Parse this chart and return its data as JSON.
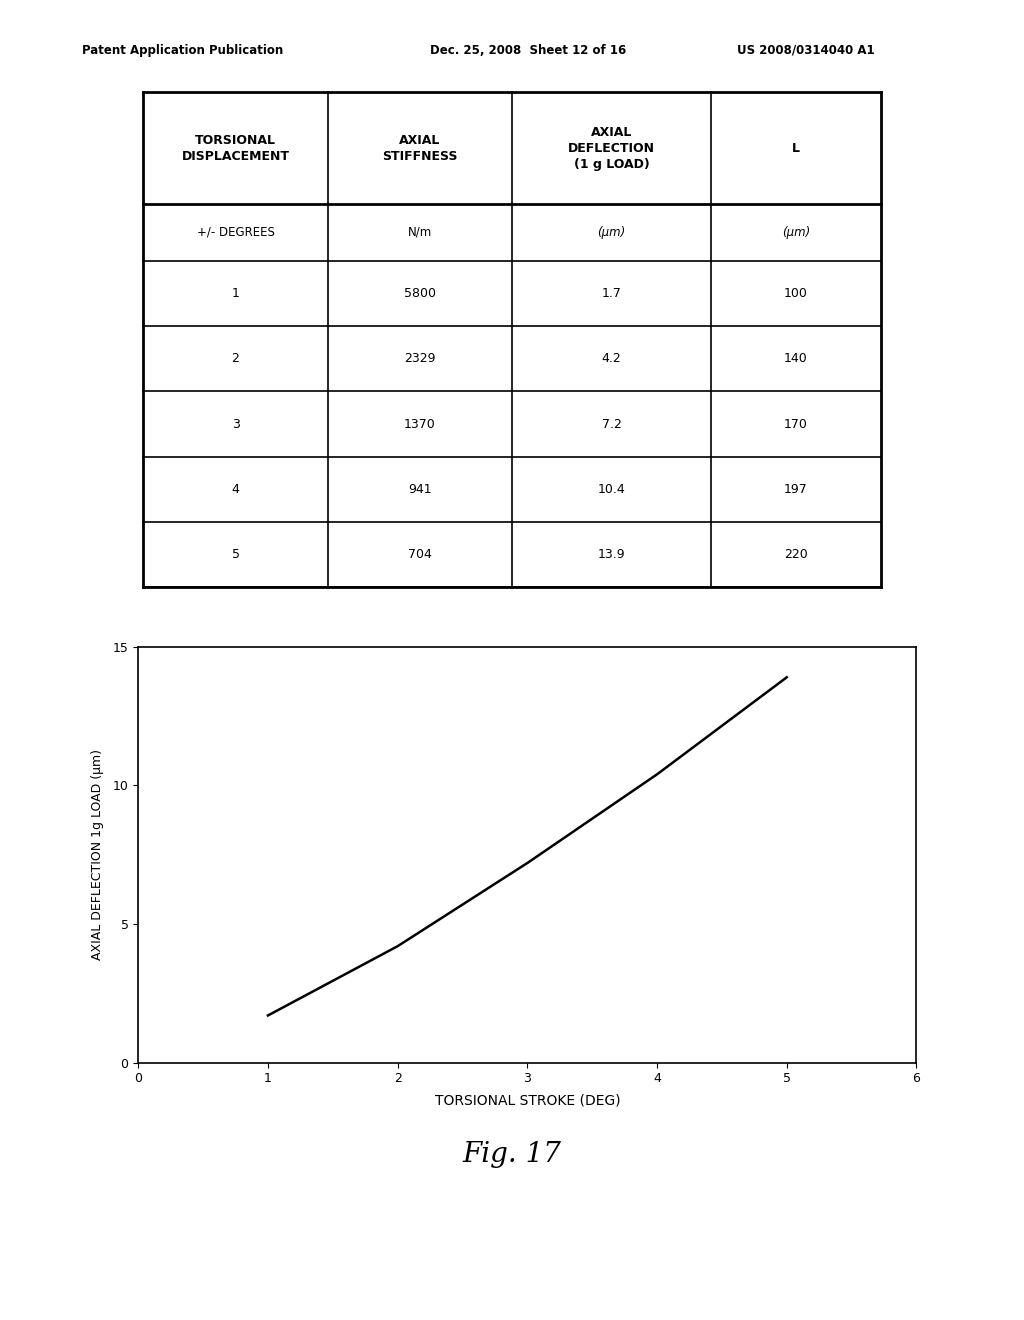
{
  "header_left": "Patent Application Publication",
  "header_mid": "Dec. 25, 2008  Sheet 12 of 16",
  "header_right": "US 2008/0314040 A1",
  "table": {
    "col_headers": [
      "TORSIONAL\nDISPLACEMENT",
      "AXIAL\nSTIFFNESS",
      "AXIAL\nDEFLECTION\n(1 g LOAD)",
      "L"
    ],
    "col_units": [
      "+/- DEGREES",
      "N/m",
      "(μm)",
      "(μm)"
    ],
    "rows": [
      [
        "1",
        "5800",
        "1.7",
        "100"
      ],
      [
        "2",
        "2329",
        "4.2",
        "140"
      ],
      [
        "3",
        "1370",
        "7.2",
        "170"
      ],
      [
        "4",
        "941",
        "10.4",
        "197"
      ],
      [
        "5",
        "704",
        "13.9",
        "220"
      ]
    ]
  },
  "plot": {
    "x": [
      1,
      2,
      3,
      4,
      5
    ],
    "y": [
      1.7,
      4.2,
      7.2,
      10.4,
      13.9
    ],
    "xlim": [
      0,
      6
    ],
    "ylim": [
      0,
      15
    ],
    "xticks": [
      0,
      1,
      2,
      3,
      4,
      5,
      6
    ],
    "yticks": [
      0,
      5,
      10,
      15
    ],
    "xlabel": "TORSIONAL STROKE (DEG)",
    "ylabel": "AXIAL DEFLECTION 1g LOAD (μm)",
    "line_color": "#000000",
    "line_width": 1.8
  },
  "fig_label": "Fig. 17",
  "background_color": "#ffffff"
}
